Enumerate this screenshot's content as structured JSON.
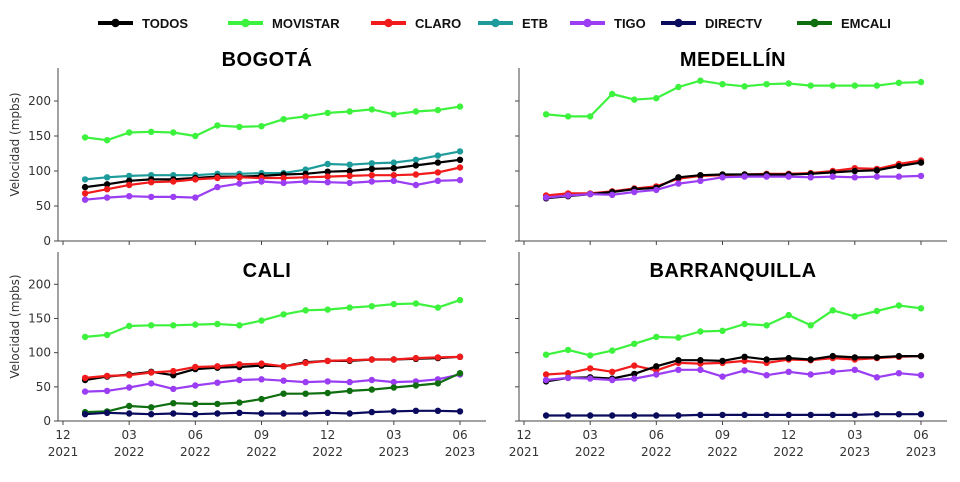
{
  "chart_data": {
    "type": "line",
    "ylabel": "Velocidad (mpbs)",
    "ylim": [
      0,
      240
    ],
    "yticks": [
      0,
      50,
      100,
      150,
      200
    ],
    "x_dates": [
      "2022-01",
      "2022-02",
      "2022-03",
      "2022-04",
      "2022-05",
      "2022-06",
      "2022-07",
      "2022-08",
      "2022-09",
      "2022-10",
      "2022-11",
      "2022-12",
      "2023-01",
      "2023-02",
      "2023-03",
      "2023-04",
      "2023-05",
      "2023-06"
    ],
    "xlim": [
      "2021-12",
      "2023-06"
    ],
    "xticks": [
      {
        "date": "2021-12",
        "label": "12",
        "year": "2021"
      },
      {
        "date": "2022-03",
        "label": "03",
        "year": "2022"
      },
      {
        "date": "2022-06",
        "label": "06",
        "year": "2022"
      },
      {
        "date": "2022-09",
        "label": "09",
        "year": "2022"
      },
      {
        "date": "2022-12",
        "label": "12",
        "year": "2022"
      },
      {
        "date": "2023-03",
        "label": "03",
        "year": "2023"
      },
      {
        "date": "2023-06",
        "label": "06",
        "year": "2023"
      }
    ],
    "legend": {
      "placement": "top",
      "entries": [
        {
          "name": "TODOS",
          "color": "#000000"
        },
        {
          "name": "MOVISTAR",
          "color": "#3df23d"
        },
        {
          "name": "CLARO",
          "color": "#f21b1b"
        },
        {
          "name": "ETB",
          "color": "#1e9b9b"
        },
        {
          "name": "TIGO",
          "color": "#9b3df2"
        },
        {
          "name": "DIRECTV",
          "color": "#0b0b5e"
        },
        {
          "name": "EMCALI",
          "color": "#0f6e0f"
        }
      ]
    },
    "panels": [
      {
        "title": "BOGOTÁ",
        "series": [
          {
            "name": "MOVISTAR",
            "values": [
              148,
              144,
              155,
              156,
              155,
              150,
              165,
              163,
              164,
              174,
              178,
              183,
              185,
              188,
              181,
              185,
              187,
              192
            ]
          },
          {
            "name": "ETB",
            "values": [
              88,
              91,
              93,
              94,
              94,
              94,
              96,
              96,
              97,
              97,
              102,
              110,
              109,
              111,
              112,
              116,
              122,
              128
            ]
          },
          {
            "name": "TODOS",
            "values": [
              77,
              81,
              86,
              88,
              88,
              90,
              92,
              92,
              93,
              95,
              96,
              99,
              100,
              103,
              104,
              108,
              112,
              116
            ]
          },
          {
            "name": "CLARO",
            "values": [
              68,
              74,
              80,
              84,
              85,
              88,
              90,
              91,
              90,
              90,
              91,
              92,
              93,
              94,
              94,
              95,
              98,
              105
            ]
          },
          {
            "name": "TIGO",
            "values": [
              59,
              62,
              64,
              63,
              63,
              62,
              77,
              82,
              85,
              83,
              85,
              84,
              83,
              85,
              86,
              80,
              86,
              87
            ]
          }
        ]
      },
      {
        "title": "MEDELLÍN",
        "series": [
          {
            "name": "MOVISTAR",
            "values": [
              181,
              178,
              178,
              210,
              202,
              204,
              220,
              229,
              224,
              221,
              224,
              225,
              222,
              222,
              222,
              222,
              226,
              227
            ]
          },
          {
            "name": "CLARO",
            "values": [
              65,
              68,
              68,
              71,
              75,
              78,
              89,
              93,
              94,
              95,
              96,
              96,
              97,
              100,
              104,
              103,
              110,
              115
            ]
          },
          {
            "name": "TODOS",
            "values": [
              61,
              64,
              67,
              70,
              74,
              76,
              91,
              94,
              95,
              95,
              95,
              95,
              96,
              98,
              100,
              101,
              107,
              112
            ]
          },
          {
            "name": "TIGO",
            "values": [
              62,
              65,
              67,
              66,
              70,
              73,
              82,
              86,
              91,
              92,
              92,
              92,
              91,
              92,
              91,
              92,
              92,
              93
            ]
          }
        ]
      },
      {
        "title": "CALI",
        "series": [
          {
            "name": "MOVISTAR",
            "values": [
              123,
              126,
              139,
              140,
              140,
              141,
              142,
              140,
              147,
              156,
              162,
              163,
              166,
              168,
              171,
              172,
              166,
              177
            ]
          },
          {
            "name": "TODOS",
            "values": [
              60,
              65,
              68,
              72,
              67,
              76,
              78,
              79,
              81,
              80,
              86,
              88,
              88,
              90,
              90,
              91,
              92,
              94
            ]
          },
          {
            "name": "CLARO",
            "values": [
              63,
              66,
              67,
              71,
              73,
              79,
              80,
              83,
              84,
              80,
              85,
              88,
              89,
              90,
              90,
              92,
              93,
              94
            ]
          },
          {
            "name": "TIGO",
            "values": [
              43,
              44,
              49,
              55,
              47,
              52,
              56,
              60,
              61,
              59,
              57,
              58,
              57,
              60,
              57,
              58,
              61,
              68
            ]
          },
          {
            "name": "EMCALI",
            "values": [
              13,
              14,
              22,
              20,
              26,
              25,
              25,
              27,
              32,
              40,
              40,
              41,
              44,
              46,
              49,
              52,
              55,
              70
            ]
          },
          {
            "name": "DIRECTV",
            "values": [
              10,
              12,
              11,
              10,
              11,
              10,
              11,
              12,
              11,
              11,
              11,
              12,
              11,
              13,
              14,
              15,
              15,
              14
            ]
          }
        ]
      },
      {
        "title": "BARRANQUILLA",
        "series": [
          {
            "name": "MOVISTAR",
            "values": [
              97,
              104,
              96,
              103,
              113,
              123,
              122,
              131,
              132,
              142,
              140,
              155,
              140,
              162,
              153,
              161,
              169,
              165
            ]
          },
          {
            "name": "CLARO",
            "values": [
              68,
              70,
              77,
              72,
              81,
              74,
              85,
              84,
              85,
              88,
              85,
              90,
              89,
              92,
              90,
              92,
              94,
              95
            ]
          },
          {
            "name": "TODOS",
            "values": [
              58,
              63,
              64,
              62,
              69,
              80,
              89,
              89,
              88,
              94,
              90,
              92,
              90,
              95,
              93,
              93,
              95,
              95
            ]
          },
          {
            "name": "TIGO",
            "values": [
              60,
              63,
              62,
              60,
              62,
              68,
              75,
              75,
              65,
              74,
              67,
              72,
              68,
              72,
              75,
              64,
              70,
              67
            ]
          },
          {
            "name": "DIRECTV",
            "values": [
              8,
              8,
              8,
              8,
              8,
              8,
              8,
              9,
              9,
              9,
              9,
              9,
              9,
              9,
              9,
              10,
              10,
              10
            ]
          }
        ]
      }
    ]
  }
}
